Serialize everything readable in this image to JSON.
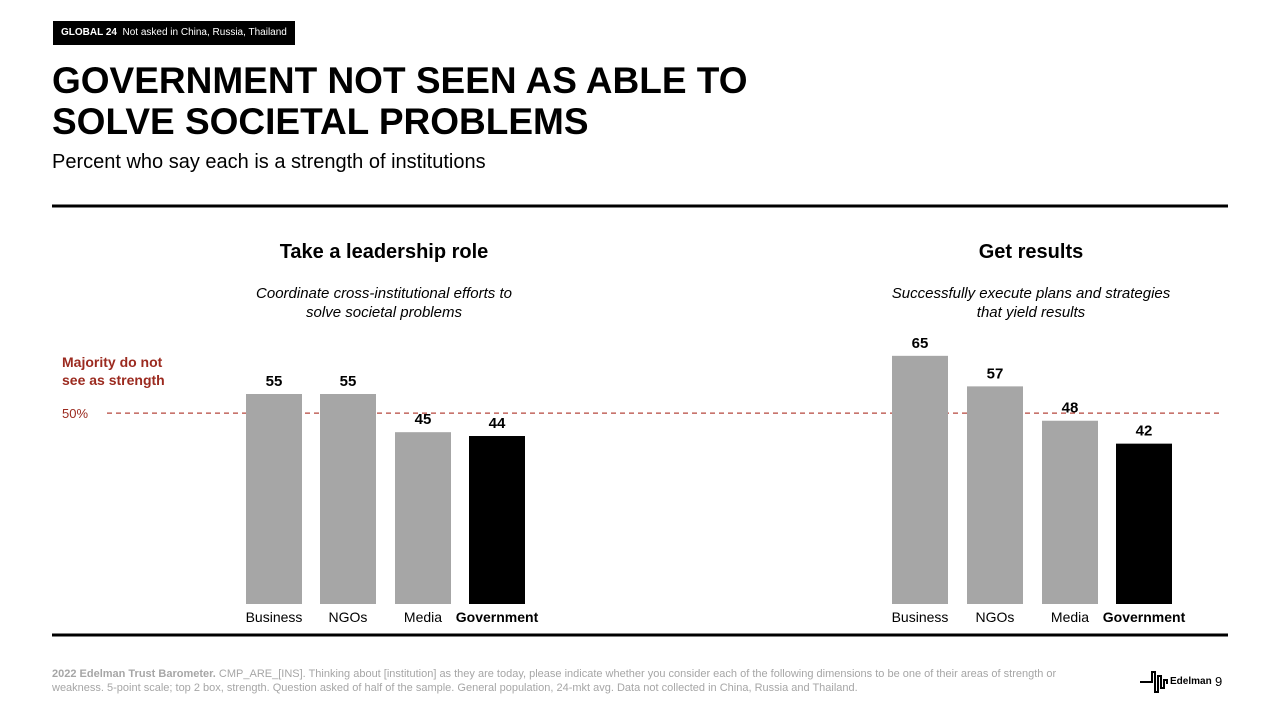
{
  "header": {
    "badge_strong": "GLOBAL 24",
    "badge_note": "Not asked in China, Russia, Thailand",
    "title": "GOVERNMENT NOT SEEN AS ABLE TO SOLVE SOCIETAL PROBLEMS",
    "subtitle": "Percent who say each is a strength of institutions"
  },
  "reference_line": {
    "value": 50,
    "label": "50%",
    "note": "Majority do not see as strength",
    "color": "#b5473d"
  },
  "chart_data": [
    {
      "type": "bar",
      "title": "Take a leadership role",
      "subtitle": "Coordinate cross-institutional efforts to solve societal problems",
      "categories": [
        "Business",
        "NGOs",
        "Media",
        "Government"
      ],
      "values": [
        55,
        55,
        45,
        44
      ],
      "colors": [
        "#a6a6a6",
        "#a6a6a6",
        "#a6a6a6",
        "#000000"
      ]
    },
    {
      "type": "bar",
      "title": "Get results",
      "subtitle": "Successfully execute plans and strategies that yield results",
      "categories": [
        "Business",
        "NGOs",
        "Media",
        "Government"
      ],
      "values": [
        65,
        57,
        48,
        42
      ],
      "colors": [
        "#a6a6a6",
        "#a6a6a6",
        "#a6a6a6",
        "#000000"
      ]
    }
  ],
  "footer": {
    "source": "2022 Edelman Trust Barometer.",
    "note": "CMP_ARE_[INS]. Thinking about [institution] as they are today, please indicate whether you consider each of the following dimensions to be one of their areas of strength or weakness. 5-point scale; top 2 box, strength. Question asked of half of the sample. General population, 24-mkt avg. Data not collected in China, Russia and Thailand.",
    "logo": "Edelman",
    "page": "9"
  }
}
